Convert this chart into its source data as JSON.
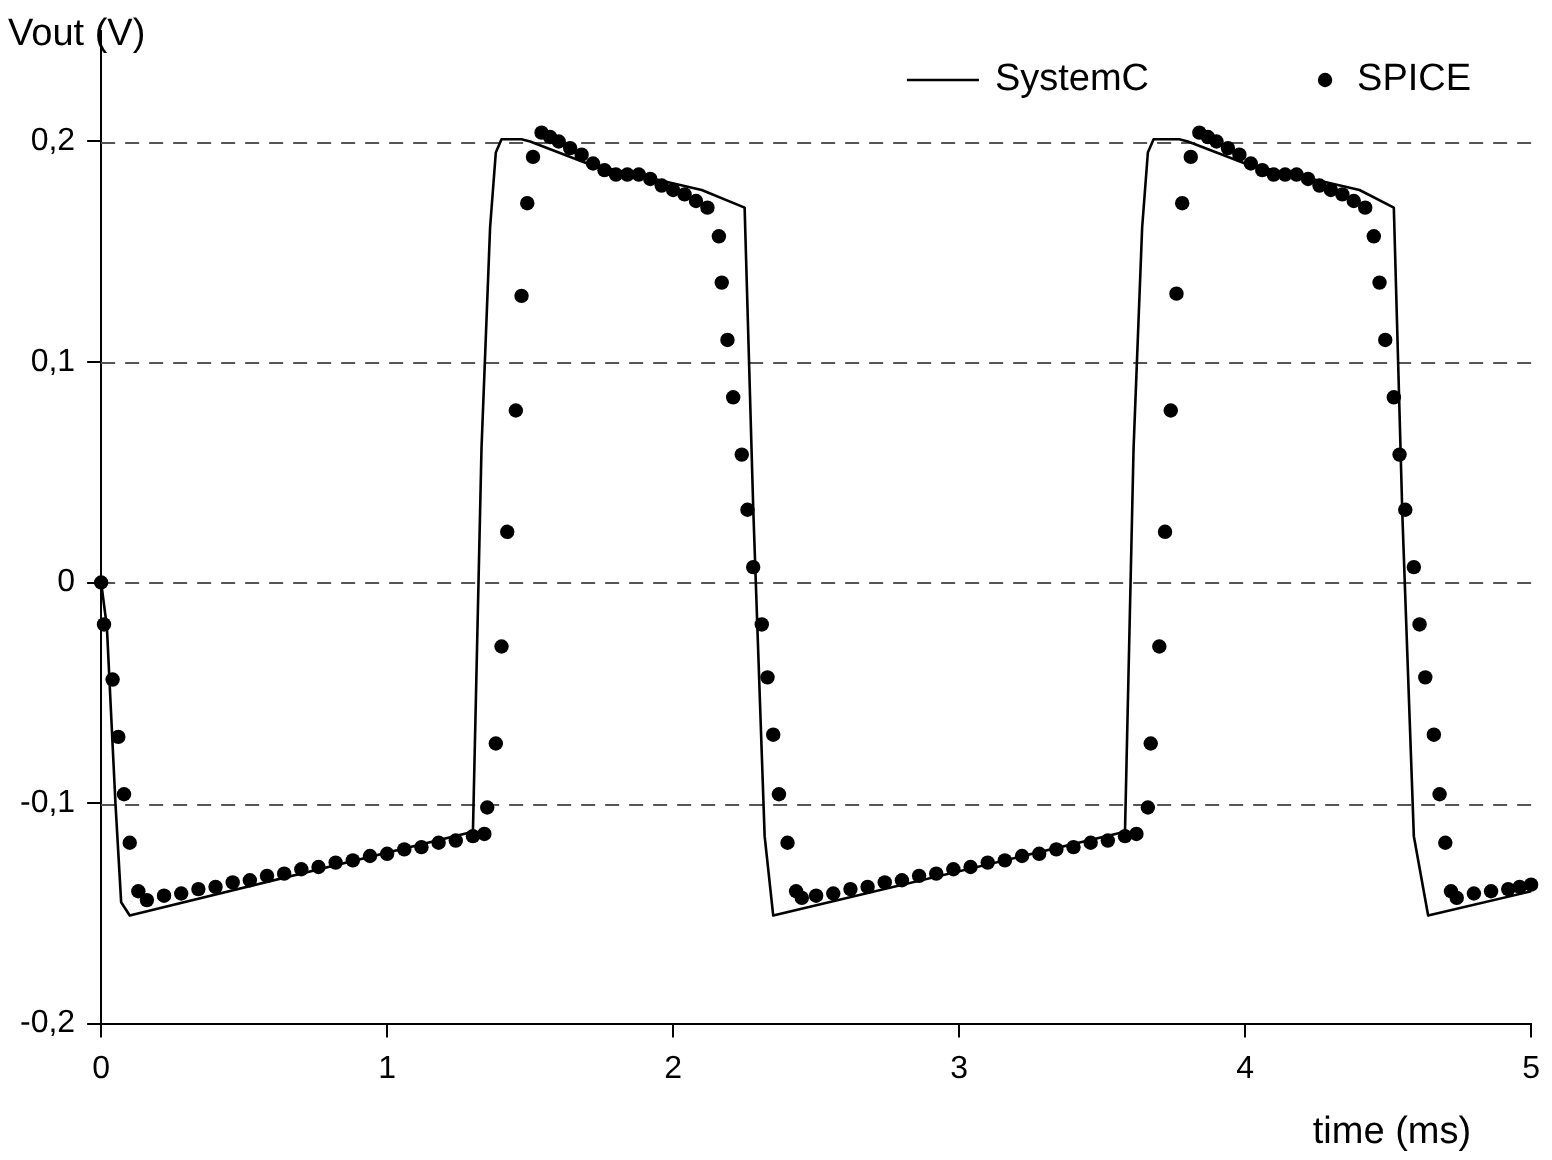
{
  "chart_data": {
    "type": "line",
    "xlabel": "time (ms)",
    "ylabel": "Vout (V)",
    "xlim": [
      0,
      5
    ],
    "xticks": [
      0,
      1,
      2,
      3,
      4,
      5
    ],
    "ylim": [
      -0.2,
      0.25
    ],
    "yticks": [
      {
        "value": -0.2,
        "label": "-0,2"
      },
      {
        "value": -0.1,
        "label": "-0,1"
      },
      {
        "value": 0,
        "label": "0"
      },
      {
        "value": 0.1,
        "label": "0,1"
      },
      {
        "value": 0.2,
        "label": "0,2"
      }
    ],
    "grid": "y",
    "legend": "top right",
    "line_style": "solid",
    "series": [
      {
        "name": "SystemC",
        "type": "line",
        "color": "#000000",
        "marker": "none",
        "x": [
          0,
          0.02,
          0.05,
          0.07,
          0.1,
          1.3,
          1.33,
          1.36,
          1.38,
          1.4,
          1.47,
          1.5,
          1.7,
          1.9,
          2.1,
          2.25,
          2.28,
          2.32,
          2.35,
          3.58,
          3.61,
          3.64,
          3.66,
          3.68,
          3.77,
          3.8,
          4.0,
          4.2,
          4.4,
          4.52,
          4.55,
          4.59,
          4.64,
          5
        ],
        "values": [
          0,
          -0.02,
          -0.1,
          -0.145,
          -0.151,
          -0.113,
          0.061,
          0.161,
          0.195,
          0.201,
          0.201,
          0.2,
          0.19,
          0.184,
          0.178,
          0.17,
          0.034,
          -0.115,
          -0.151,
          -0.113,
          0.061,
          0.161,
          0.195,
          0.201,
          0.201,
          0.2,
          0.19,
          0.184,
          0.178,
          0.17,
          0.03,
          -0.115,
          -0.151,
          -0.14
        ]
      },
      {
        "name": "SPICE",
        "type": "scatter",
        "color": "#000000",
        "marker": "circle",
        "x": [
          0,
          0.01,
          0.04,
          0.06,
          0.08,
          0.1,
          0.13,
          0.16,
          0.22,
          0.28,
          0.34,
          0.4,
          0.46,
          0.52,
          0.58,
          0.64,
          0.7,
          0.76,
          0.82,
          0.88,
          0.94,
          1.0,
          1.06,
          1.12,
          1.18,
          1.24,
          1.3,
          1.34,
          1.35,
          1.38,
          1.4,
          1.42,
          1.45,
          1.47,
          1.49,
          1.51,
          1.54,
          1.57,
          1.6,
          1.64,
          1.68,
          1.72,
          1.76,
          1.8,
          1.84,
          1.88,
          1.92,
          1.96,
          2.0,
          2.04,
          2.08,
          2.12,
          2.16,
          2.17,
          2.19,
          2.21,
          2.24,
          2.26,
          2.28,
          2.31,
          2.33,
          2.35,
          2.37,
          2.4,
          2.43,
          2.45,
          2.5,
          2.56,
          2.62,
          2.68,
          2.74,
          2.8,
          2.86,
          2.92,
          2.98,
          3.04,
          3.1,
          3.16,
          3.22,
          3.28,
          3.34,
          3.4,
          3.46,
          3.52,
          3.58,
          3.62,
          3.66,
          3.67,
          3.7,
          3.72,
          3.74,
          3.76,
          3.78,
          3.81,
          3.84,
          3.87,
          3.9,
          3.94,
          3.98,
          4.02,
          4.06,
          4.1,
          4.14,
          4.18,
          4.22,
          4.26,
          4.3,
          4.34,
          4.38,
          4.42,
          4.45,
          4.47,
          4.49,
          4.52,
          4.54,
          4.56,
          4.59,
          4.61,
          4.63,
          4.66,
          4.68,
          4.7,
          4.72,
          4.74,
          4.8,
          4.86,
          4.92,
          4.96,
          5.0
        ],
        "values": [
          0,
          -0.019,
          -0.044,
          -0.07,
          -0.096,
          -0.118,
          -0.14,
          -0.144,
          -0.142,
          -0.141,
          -0.139,
          -0.138,
          -0.136,
          -0.135,
          -0.133,
          -0.132,
          -0.13,
          -0.129,
          -0.127,
          -0.126,
          -0.124,
          -0.123,
          -0.121,
          -0.12,
          -0.118,
          -0.117,
          -0.115,
          -0.114,
          -0.102,
          -0.073,
          -0.029,
          0.023,
          0.078,
          0.13,
          0.172,
          0.193,
          0.204,
          0.202,
          0.2,
          0.197,
          0.194,
          0.19,
          0.187,
          0.185,
          0.185,
          0.185,
          0.183,
          0.18,
          0.178,
          0.176,
          0.173,
          0.17,
          0.157,
          0.136,
          0.11,
          0.084,
          0.058,
          0.033,
          0.007,
          -0.019,
          -0.043,
          -0.069,
          -0.096,
          -0.118,
          -0.14,
          -0.143,
          -0.142,
          -0.141,
          -0.139,
          -0.138,
          -0.136,
          -0.135,
          -0.133,
          -0.132,
          -0.13,
          -0.129,
          -0.127,
          -0.126,
          -0.124,
          -0.123,
          -0.121,
          -0.12,
          -0.118,
          -0.117,
          -0.115,
          -0.114,
          -0.102,
          -0.073,
          -0.029,
          0.023,
          0.078,
          0.131,
          0.172,
          0.193,
          0.204,
          0.202,
          0.2,
          0.197,
          0.194,
          0.19,
          0.187,
          0.185,
          0.185,
          0.185,
          0.183,
          0.18,
          0.178,
          0.176,
          0.173,
          0.17,
          0.157,
          0.136,
          0.11,
          0.084,
          0.058,
          0.033,
          0.007,
          -0.019,
          -0.043,
          -0.069,
          -0.096,
          -0.118,
          -0.14,
          -0.143,
          -0.141,
          -0.14,
          -0.139,
          -0.138,
          -0.137
        ]
      }
    ]
  }
}
